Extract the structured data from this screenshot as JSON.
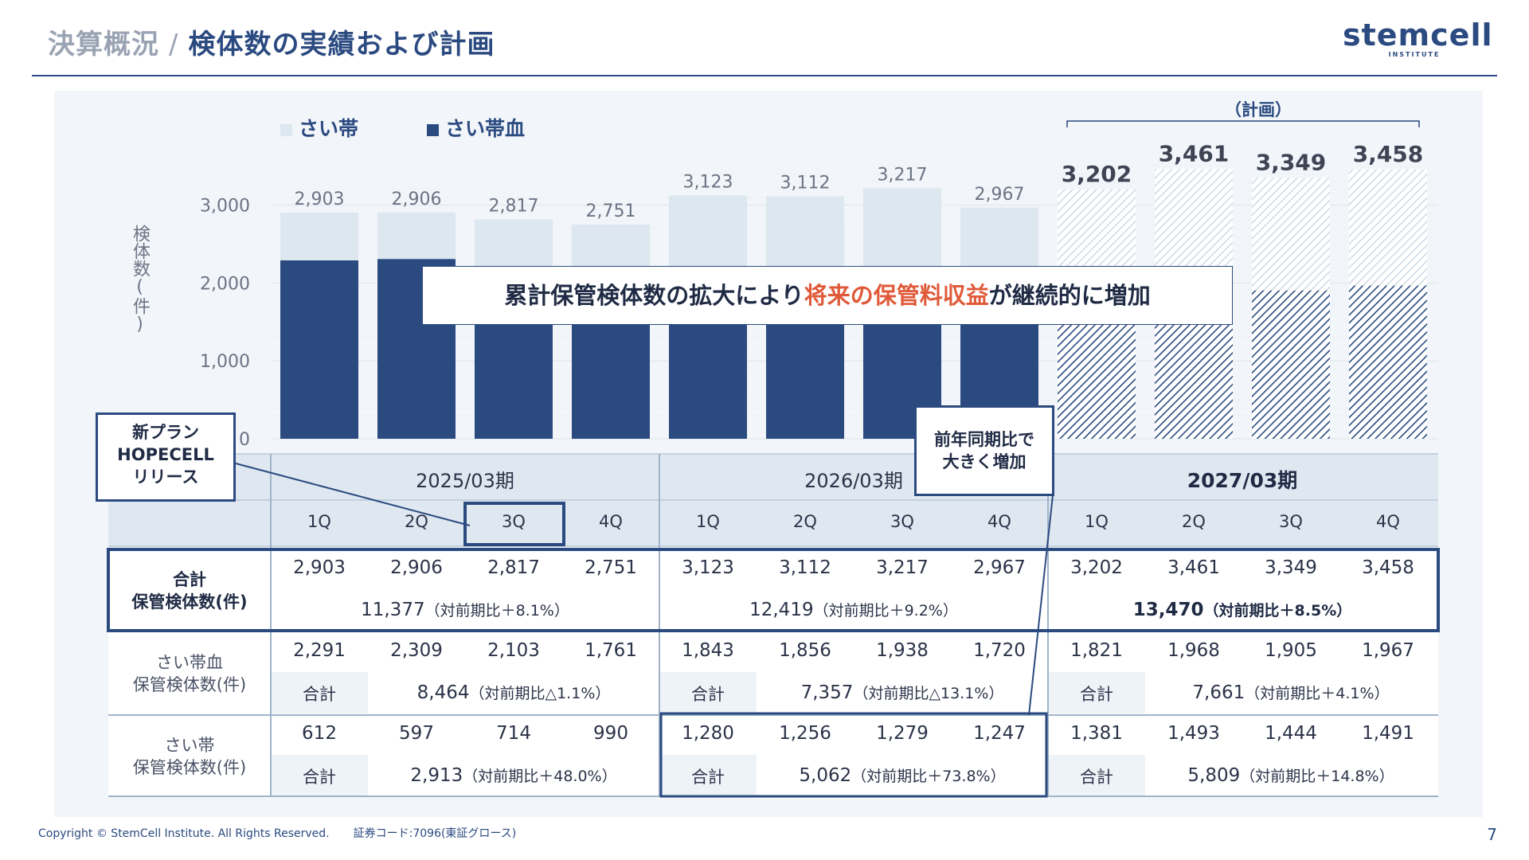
{
  "header": {
    "breadcrumb": "決算概況",
    "separator": "/",
    "title": "検体数の実績および計画"
  },
  "logo": {
    "wordmark": "stemcell",
    "sub": "INSTITUTE"
  },
  "legend": {
    "umbilical_cord": "さい帯",
    "cord_blood": "さい帯血"
  },
  "plan_label": "（計画）",
  "callout": {
    "prefix": "累計保管検体数の拡大により",
    "highlight": "将来の保管料収益",
    "suffix": "が継続的に増加"
  },
  "note_hopecell": [
    "新プラン",
    "HOPECELL",
    "リリース"
  ],
  "note_growth": [
    "前年同期比で",
    "大きく増加"
  ],
  "colors": {
    "cord_blood": "#2b4a80",
    "umbilical_cord": "#dde7ef",
    "accent": "#e05a3a",
    "header_band": "#dfe8f0"
  },
  "chart_data": {
    "type": "bar",
    "stacked": true,
    "categories": [
      "1Q",
      "2Q",
      "3Q",
      "4Q",
      "1Q",
      "2Q",
      "3Q",
      "4Q",
      "1Q",
      "2Q",
      "3Q",
      "4Q"
    ],
    "periods": [
      "2025/03期",
      "2026/03期",
      "2027/03期"
    ],
    "series": [
      {
        "name": "さい帯血",
        "values": [
          2291,
          2309,
          2103,
          1761,
          1843,
          1856,
          1938,
          1720,
          1821,
          1968,
          1905,
          1967
        ]
      },
      {
        "name": "さい帯",
        "values": [
          612,
          597,
          714,
          990,
          1280,
          1256,
          1279,
          1247,
          1381,
          1493,
          1444,
          1491
        ]
      }
    ],
    "totals": [
      2903,
      2906,
      2817,
      2751,
      3123,
      3112,
      3217,
      2967,
      3202,
      3461,
      3349,
      3458
    ],
    "total_labels": [
      "2,903",
      "2,906",
      "2,817",
      "2,751",
      "3,123",
      "3,112",
      "3,217",
      "2,967",
      "3,202",
      "3,461",
      "3,349",
      "3,458"
    ],
    "planned_from_index": 8,
    "ylabel": "検体数(件)",
    "ylim": [
      0,
      3500
    ],
    "yticks": [
      "0",
      "1,000",
      "2,000",
      "3,000"
    ],
    "grid": true,
    "legend_position": "top-left"
  },
  "table": {
    "periods": [
      "2025/03期",
      "2026/03期",
      "2027/03期"
    ],
    "quarters": [
      "1Q",
      "2Q",
      "3Q",
      "4Q",
      "1Q",
      "2Q",
      "3Q",
      "4Q",
      "1Q",
      "2Q",
      "3Q",
      "4Q"
    ],
    "total_row": {
      "label": [
        "合計",
        "保管検体数(件)"
      ],
      "values": [
        "2,903",
        "2,906",
        "2,817",
        "2,751",
        "3,123",
        "3,112",
        "3,217",
        "2,967",
        "3,202",
        "3,461",
        "3,349",
        "3,458"
      ],
      "period_totals": [
        {
          "value": "11,377",
          "yoy": "（対前期比＋8.1%）"
        },
        {
          "value": "12,419",
          "yoy": "（対前期比＋9.2%）"
        },
        {
          "value": "13,470",
          "yoy": "（対前期比＋8.5%）"
        }
      ]
    },
    "cord_blood_row": {
      "label": [
        "さい帯血",
        "保管検体数(件)"
      ],
      "values": [
        "2,291",
        "2,309",
        "2,103",
        "1,761",
        "1,843",
        "1,856",
        "1,938",
        "1,720",
        "1,821",
        "1,968",
        "1,905",
        "1,967"
      ],
      "sum_label": "合計",
      "period_totals": [
        {
          "value": "8,464",
          "yoy": "（対前期比△1.1%）"
        },
        {
          "value": "7,357",
          "yoy": "（対前期比△13.1%）"
        },
        {
          "value": "7,661",
          "yoy": "（対前期比＋4.1%）"
        }
      ]
    },
    "cord_row": {
      "label": [
        "さい帯",
        "保管検体数(件)"
      ],
      "values": [
        "612",
        "597",
        "714",
        "990",
        "1,280",
        "1,256",
        "1,279",
        "1,247",
        "1,381",
        "1,493",
        "1,444",
        "1,491"
      ],
      "sum_label": "合計",
      "period_totals": [
        {
          "value": "2,913",
          "yoy": "（対前期比＋48.0%）"
        },
        {
          "value": "5,062",
          "yoy": "（対前期比＋73.8%）"
        },
        {
          "value": "5,809",
          "yoy": "（対前期比＋14.8%）"
        }
      ]
    }
  },
  "footer": {
    "copyright": "Copyright © StemCell Institute. All Rights Reserved.",
    "code": "証券コード:7096(東証グロース)",
    "page": "7"
  }
}
